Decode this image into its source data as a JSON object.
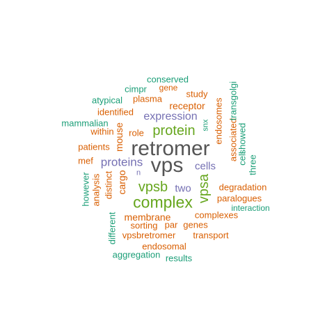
{
  "palette": {
    "teal": "#1b9e77",
    "orange": "#d95f02",
    "purple": "#7570b3",
    "green": "#66a61e",
    "grey": "#555555"
  },
  "words": {
    "retromer": "retromer",
    "vps": "vps",
    "complex": "complex",
    "protein": "protein",
    "vpsb": "vpsb",
    "vpsa": "vpsa",
    "proteins": "proteins",
    "expression": "expression",
    "cells": "cells",
    "two": "two",
    "receptor": "receptor",
    "membrane": "membrane",
    "mouse": "mouse",
    "cargo": "cargo",
    "endosomes": "endosomes",
    "degradation": "degradation",
    "associated": "associated",
    "paralogues": "paralogues",
    "sorting": "sorting",
    "genes": "genes",
    "complexes": "complexes",
    "transport": "transport",
    "endosomal": "endosomal",
    "vpsbretromer": "vpsbretromer",
    "aggregation": "aggregation",
    "results": "results",
    "interaction": "interaction",
    "conserved": "conserved",
    "gene": "gene",
    "cimpr": "cimpr",
    "study": "study",
    "plasma": "plasma",
    "atypical": "atypical",
    "identified": "identified",
    "mammalian": "mammalian",
    "within": "within",
    "role": "role",
    "patients": "patients",
    "mef": "mef",
    "however": "however",
    "analysis": "analysis",
    "distinct": "distinct",
    "different": "different",
    "par": "par",
    "n": "n",
    "snx": "snx",
    "transgolgi": "transgolgi",
    "cell": "cell",
    "showed": "showed",
    "three": "three"
  }
}
